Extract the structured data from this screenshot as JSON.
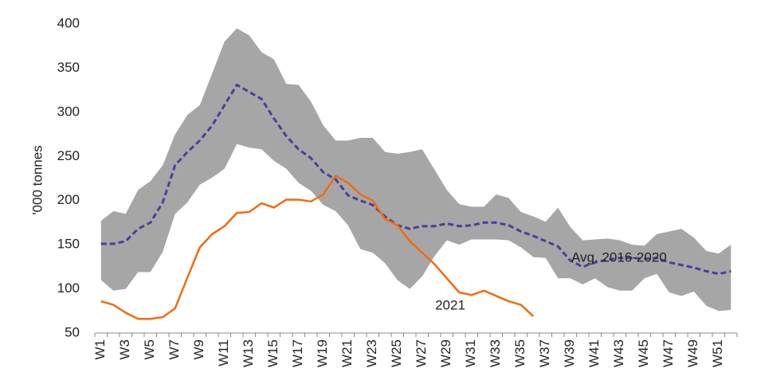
{
  "chart_data": {
    "type": "line",
    "y_label": "'000 tonnes",
    "categories": [
      "W1",
      null,
      "W3",
      null,
      "W5",
      null,
      "W7",
      null,
      "W9",
      null,
      "W11",
      null,
      "W13",
      null,
      "W15",
      null,
      "W17",
      null,
      "W19",
      null,
      "W21",
      null,
      "W23",
      null,
      "W25",
      null,
      "W27",
      null,
      "W29",
      null,
      "W31",
      null,
      "W33",
      null,
      "W35",
      null,
      "W37",
      null,
      "W39",
      null,
      "W41",
      null,
      "W43",
      null,
      "W45",
      null,
      "W47",
      null,
      "W49",
      null,
      "W51",
      null
    ],
    "band": {
      "color": "#a6a6a6",
      "high": [
        177,
        188,
        185,
        212,
        222,
        240,
        275,
        297,
        308,
        344,
        380,
        395,
        387,
        368,
        360,
        332,
        331,
        312,
        285,
        268,
        268,
        271,
        271,
        255,
        253,
        255,
        258,
        235,
        212,
        196,
        193,
        193,
        207,
        203,
        187,
        182,
        176,
        192,
        170,
        155,
        156,
        157,
        155,
        150,
        149,
        162,
        165,
        168,
        158,
        143,
        140,
        150
      ],
      "low": [
        110,
        98,
        100,
        119,
        119,
        142,
        185,
        198,
        218,
        226,
        236,
        264,
        260,
        258,
        245,
        236,
        220,
        211,
        195,
        188,
        172,
        145,
        141,
        129,
        110,
        100,
        114,
        137,
        155,
        150,
        156,
        156,
        156,
        155,
        147,
        136,
        135,
        112,
        112,
        105,
        112,
        102,
        98,
        98,
        112,
        117,
        96,
        92,
        97,
        81,
        75,
        76
      ]
    },
    "series": [
      {
        "name": "Avg. 2016-2020",
        "color": "#4a3f9a",
        "dashed": true,
        "values": [
          151,
          151,
          154,
          168,
          175,
          198,
          240,
          255,
          268,
          285,
          308,
          331,
          323,
          315,
          293,
          273,
          258,
          248,
          232,
          224,
          206,
          200,
          195,
          182,
          172,
          168,
          171,
          171,
          174,
          171,
          172,
          175,
          175,
          172,
          165,
          160,
          154,
          148,
          132,
          125,
          130,
          133,
          135,
          135,
          134,
          135,
          130,
          127,
          124,
          120,
          117,
          120
        ]
      },
      {
        "name": "2021",
        "color": "#f26b0f",
        "dashed": false,
        "values": [
          86,
          82,
          73,
          66,
          66,
          68,
          78,
          113,
          147,
          162,
          171,
          186,
          187,
          197,
          192,
          201,
          201,
          199,
          207,
          228,
          220,
          207,
          200,
          179,
          172,
          154,
          141,
          128,
          112,
          96,
          93,
          98,
          92,
          86,
          82,
          69,
          null,
          null,
          null,
          null,
          null,
          null,
          null,
          null,
          null,
          null,
          null,
          null,
          null,
          null,
          null,
          null
        ]
      }
    ],
    "ylim": [
      50,
      400
    ],
    "yticks": [
      50,
      100,
      150,
      200,
      250,
      300,
      350,
      400
    ]
  }
}
